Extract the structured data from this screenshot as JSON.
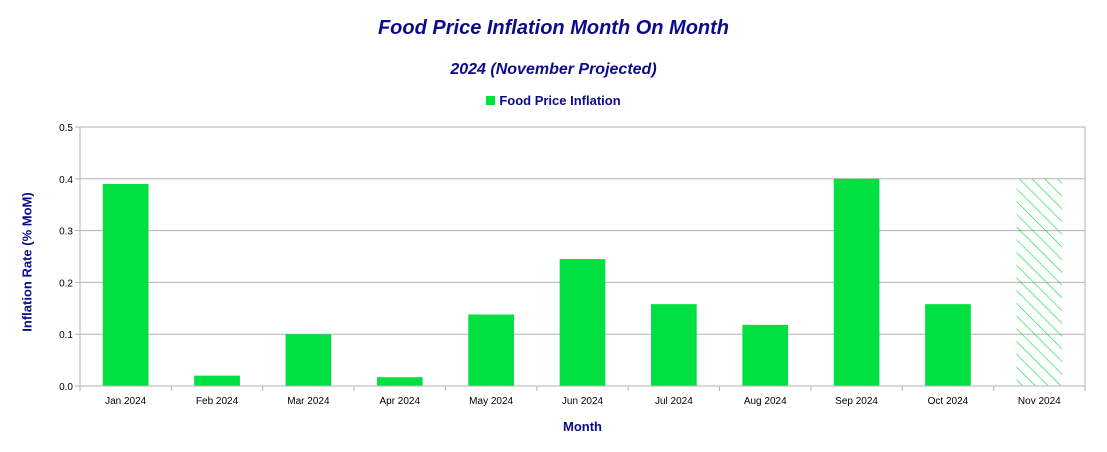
{
  "chart_data": {
    "type": "bar",
    "title": "Food Price Inflation Month On Month",
    "subtitle": "2024 (November Projected)",
    "xlabel": "Month",
    "ylabel": "Inflation Rate (% MoM)",
    "ylim": [
      0,
      0.5
    ],
    "yticks": [
      "0.0",
      "0.1",
      "0.2",
      "0.3",
      "0.4",
      "0.5"
    ],
    "grid": true,
    "legend_position": "top-center",
    "series": [
      {
        "name": "Food Price Inflation",
        "color": "#00e040",
        "values": [
          0.39,
          0.02,
          0.1,
          0.017,
          0.138,
          0.245,
          0.158,
          0.118,
          0.4,
          0.158,
          0.4
        ]
      }
    ],
    "categories": [
      "Jan 2024",
      "Feb 2024",
      "Mar 2024",
      "Apr 2024",
      "May 2024",
      "Jun 2024",
      "Jul 2024",
      "Aug 2024",
      "Sep 2024",
      "Oct 2024",
      "Nov 2024"
    ],
    "projected": [
      false,
      false,
      false,
      false,
      false,
      false,
      false,
      false,
      false,
      false,
      true
    ]
  }
}
